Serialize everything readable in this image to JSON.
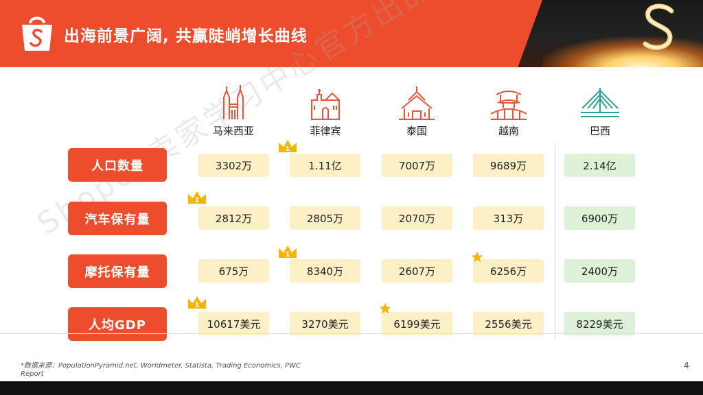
{
  "header": {
    "title": "出海前景广阔, 共赢陡峭增长曲线"
  },
  "countries": [
    {
      "name": "马来西亚",
      "icon": "twin-towers-icon"
    },
    {
      "name": "菲律宾",
      "icon": "church-icon"
    },
    {
      "name": "泰国",
      "icon": "temple-icon"
    },
    {
      "name": "越南",
      "icon": "pagoda-bridge-icon"
    },
    {
      "name": "巴西",
      "icon": "bridge-icon"
    }
  ],
  "rows": [
    {
      "label": "人口数量",
      "values": [
        "3302万",
        "1.11亿",
        "7007万",
        "9689万",
        "2.14亿"
      ]
    },
    {
      "label": "汽车保有量",
      "values": [
        "2812万",
        "2805万",
        "2070万",
        "313万",
        "6900万"
      ]
    },
    {
      "label": "摩托保有量",
      "values": [
        "675万",
        "8340万",
        "2607万",
        "6256万",
        "2400万"
      ]
    },
    {
      "label": "人均GDP",
      "values": [
        "10617美元",
        "3270美元",
        "6199美元",
        "2556美元",
        "8229美元"
      ]
    }
  ],
  "badges": {
    "crown_number": "1"
  },
  "watermark": "Shopee卖家学习中心官方出品，禁转载",
  "footer": {
    "source": "*数据来源：PopulationPyramid.net, Worldmeter, Statista, Trading Economics, PWC Report",
    "page": "4"
  },
  "colors": {
    "brand": "#ee4d2d",
    "cell_yellow": "#fdefc6",
    "cell_green": "#ddf0d8",
    "icon_teal": "#2aa198"
  }
}
